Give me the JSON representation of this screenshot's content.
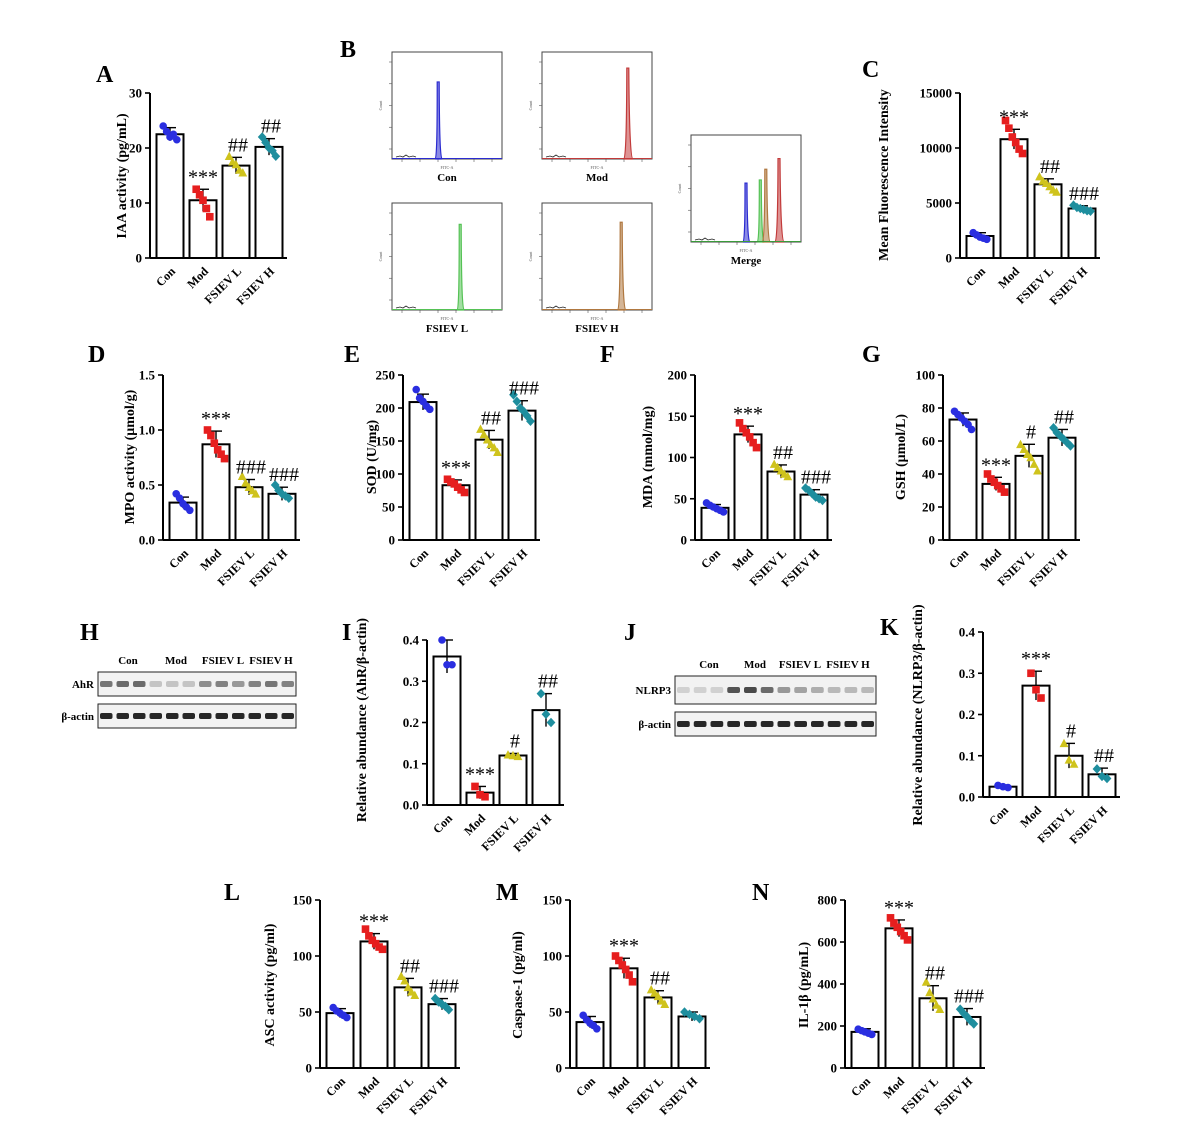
{
  "panel_labels": {
    "A": "A",
    "B": "B",
    "C": "C",
    "D": "D",
    "E": "E",
    "F": "F",
    "G": "G",
    "H": "H",
    "I": "I",
    "J": "J",
    "K": "K",
    "L": "L",
    "M": "M",
    "N": "N"
  },
  "colors": {
    "Con": "#2a2ee0",
    "Mod": "#e61e1e",
    "FSIEV L": "#cfc31c",
    "FSIEV H": "#1e8e9e",
    "FSIEV L (C)": "#1e9a3a",
    "hist_con": "#2b2bd0",
    "hist_mod": "#c23a3a",
    "hist_l": "#55c255",
    "hist_h": "#b07840"
  },
  "flow": {
    "axis_label": "FITC-A",
    "count_label": "Count",
    "titles": {
      "con": "Con",
      "mod": "Mod",
      "l": "FSIEV L",
      "h": "FSIEV H",
      "merge": "Merge"
    }
  },
  "western_H": {
    "groups": [
      "Con",
      "Mod",
      "FSIEV L",
      "FSIEV H"
    ],
    "rows": [
      "AhR",
      "β-actin"
    ]
  },
  "western_J": {
    "groups": [
      "Con",
      "Mod",
      "FSIEV L",
      "FSIEV H"
    ],
    "rows": [
      "NLRP3",
      "β-actin"
    ]
  },
  "chart_data": [
    {
      "id": "A",
      "type": "bar",
      "ylabel": "IAA activity (pg/mL)",
      "categories": [
        "Con",
        "Mod",
        "FSIEV L",
        "FSIEV H"
      ],
      "values": [
        22.5,
        10.5,
        16.8,
        20.2
      ],
      "errors": [
        1.2,
        2.0,
        1.5,
        1.5
      ],
      "ylim": [
        0,
        30
      ],
      "yticks": [
        0,
        10,
        20,
        30
      ],
      "significance": [
        "",
        "***",
        "##",
        "##"
      ],
      "points": [
        [
          24,
          23,
          22,
          22.5,
          21.5
        ],
        [
          12.5,
          11.5,
          10.5,
          9,
          7.5
        ],
        [
          18.5,
          17.5,
          17,
          16,
          15.5
        ],
        [
          22,
          21,
          20,
          19.5,
          18.5
        ]
      ]
    },
    {
      "id": "C",
      "type": "bar",
      "ylabel": "Mean Fluorescence Intensity",
      "categories": [
        "Con",
        "Mod",
        "FSIEV L",
        "FSIEV H"
      ],
      "values": [
        2000,
        10800,
        6700,
        4500
      ],
      "errors": [
        300,
        900,
        500,
        250
      ],
      "ylim": [
        0,
        15000
      ],
      "yticks": [
        0,
        5000,
        10000,
        15000
      ],
      "significance": [
        "",
        "***",
        "##",
        "###"
      ],
      "points": [
        [
          2300,
          2100,
          1900,
          1800,
          1700
        ],
        [
          12500,
          11800,
          11000,
          10500,
          9900,
          9500
        ],
        [
          7400,
          7000,
          6800,
          6500,
          6200,
          6000
        ],
        [
          4800,
          4600,
          4500,
          4400,
          4300,
          4250
        ]
      ]
    },
    {
      "id": "D",
      "type": "bar",
      "ylabel": "MPO activity (μmol/g)",
      "categories": [
        "Con",
        "Mod",
        "FSIEV L",
        "FSIEV H"
      ],
      "values": [
        0.34,
        0.87,
        0.48,
        0.42
      ],
      "errors": [
        0.05,
        0.12,
        0.07,
        0.06
      ],
      "ylim": [
        0,
        1.5
      ],
      "yticks": [
        "0.0",
        "0.5",
        "1.0",
        "1.5"
      ],
      "significance": [
        "",
        "***",
        "###",
        "###"
      ],
      "points": [
        [
          0.42,
          0.38,
          0.33,
          0.3,
          0.27
        ],
        [
          1.0,
          0.95,
          0.88,
          0.82,
          0.78,
          0.74
        ],
        [
          0.58,
          0.52,
          0.48,
          0.45,
          0.42
        ],
        [
          0.5,
          0.45,
          0.42,
          0.4,
          0.38
        ]
      ]
    },
    {
      "id": "E",
      "type": "bar",
      "ylabel": "SOD (U/mg)",
      "categories": [
        "Con",
        "Mod",
        "FSIEV L",
        "FSIEV H"
      ],
      "values": [
        209,
        83,
        152,
        196
      ],
      "errors": [
        12,
        8,
        14,
        15
      ],
      "ylim": [
        0,
        250
      ],
      "yticks": [
        0,
        50,
        100,
        150,
        200,
        250
      ],
      "significance": [
        "",
        "***",
        "##",
        "###"
      ],
      "points": [
        [
          228,
          215,
          210,
          203,
          198
        ],
        [
          92,
          88,
          85,
          80,
          76,
          72
        ],
        [
          168,
          160,
          152,
          145,
          140,
          133
        ],
        [
          220,
          210,
          200,
          195,
          188,
          180
        ]
      ]
    },
    {
      "id": "F",
      "type": "bar",
      "ylabel": "MDA (mmol/mg)",
      "categories": [
        "Con",
        "Mod",
        "FSIEV L",
        "FSIEV H"
      ],
      "values": [
        39,
        128,
        83,
        55
      ],
      "errors": [
        4,
        10,
        8,
        6
      ],
      "ylim": [
        0,
        200
      ],
      "yticks": [
        0,
        50,
        100,
        150,
        200
      ],
      "significance": [
        "",
        "***",
        "##",
        "###"
      ],
      "points": [
        [
          45,
          42,
          40,
          38,
          36,
          34
        ],
        [
          142,
          135,
          130,
          125,
          118,
          112
        ],
        [
          92,
          88,
          84,
          80,
          77
        ],
        [
          63,
          60,
          56,
          52,
          50,
          48
        ]
      ]
    },
    {
      "id": "G",
      "type": "bar",
      "ylabel": "GSH (μmol/L)",
      "categories": [
        "Con",
        "Mod",
        "FSIEV L",
        "FSIEV H"
      ],
      "values": [
        73,
        34,
        51,
        62
      ],
      "errors": [
        4,
        4,
        7,
        5
      ],
      "ylim": [
        0,
        100
      ],
      "yticks": [
        0,
        20,
        40,
        60,
        80,
        100
      ],
      "significance": [
        "",
        "***",
        "#",
        "##"
      ],
      "points": [
        [
          78,
          76,
          74,
          72,
          70,
          67
        ],
        [
          40,
          37,
          35,
          33,
          31,
          29
        ],
        [
          58,
          55,
          52,
          50,
          46,
          42
        ],
        [
          68,
          65,
          63,
          61,
          59,
          57
        ]
      ]
    },
    {
      "id": "I",
      "type": "bar",
      "ylabel": "Relative abundance (AhR/β-actin)",
      "categories": [
        "Con",
        "Mod",
        "FSIEV L",
        "FSIEV H"
      ],
      "values": [
        0.36,
        0.03,
        0.12,
        0.23
      ],
      "errors": [
        0.04,
        0.015,
        0.005,
        0.04
      ],
      "ylim": [
        0,
        0.4
      ],
      "yticks": [
        "0.0",
        "0.1",
        "0.2",
        "0.3",
        "0.4"
      ],
      "significance": [
        "",
        "***",
        "#",
        "##"
      ],
      "points": [
        [
          0.4,
          0.34,
          0.34
        ],
        [
          0.045,
          0.025,
          0.02
        ],
        [
          0.122,
          0.12,
          0.118
        ],
        [
          0.27,
          0.22,
          0.2
        ]
      ]
    },
    {
      "id": "K",
      "type": "bar",
      "ylabel": "Relative abundance (NLRP3/β-actin)",
      "categories": [
        "Con",
        "Mod",
        "FSIEV L",
        "FSIEV H"
      ],
      "values": [
        0.025,
        0.27,
        0.1,
        0.055
      ],
      "errors": [
        0.004,
        0.035,
        0.03,
        0.015
      ],
      "ylim": [
        0,
        0.4
      ],
      "yticks": [
        "0.0",
        "0.1",
        "0.2",
        "0.3",
        "0.4"
      ],
      "significance": [
        "",
        "***",
        "#",
        "##"
      ],
      "points": [
        [
          0.028,
          0.025,
          0.023
        ],
        [
          0.3,
          0.26,
          0.24
        ],
        [
          0.13,
          0.09,
          0.08
        ],
        [
          0.068,
          0.05,
          0.045
        ]
      ]
    },
    {
      "id": "L",
      "type": "bar",
      "ylabel": "ASC activity (pg/ml)",
      "categories": [
        "Con",
        "Mod",
        "FSIEV L",
        "FSIEV H"
      ],
      "values": [
        49,
        113,
        72,
        57
      ],
      "errors": [
        4,
        7,
        8,
        5
      ],
      "ylim": [
        0,
        150
      ],
      "yticks": [
        0,
        50,
        100,
        150
      ],
      "significance": [
        "",
        "***",
        "##",
        "###"
      ],
      "points": [
        [
          54,
          51,
          49,
          47,
          45
        ],
        [
          124,
          118,
          114,
          111,
          108,
          106
        ],
        [
          82,
          78,
          72,
          68,
          65
        ],
        [
          62,
          59,
          57,
          55,
          52
        ]
      ]
    },
    {
      "id": "M",
      "type": "bar",
      "ylabel": "Caspase-1 (pg/ml)",
      "categories": [
        "Con",
        "Mod",
        "FSIEV L",
        "FSIEV H"
      ],
      "values": [
        41,
        89,
        63,
        46
      ],
      "errors": [
        5,
        9,
        6,
        4
      ],
      "ylim": [
        0,
        150
      ],
      "yticks": [
        0,
        50,
        100,
        150
      ],
      "significance": [
        "",
        "***",
        "##",
        ""
      ],
      "points": [
        [
          47,
          43,
          40,
          38,
          35
        ],
        [
          100,
          96,
          92,
          88,
          83,
          77
        ],
        [
          70,
          67,
          64,
          60,
          57
        ],
        [
          50,
          48,
          46,
          44
        ]
      ]
    },
    {
      "id": "N",
      "type": "bar",
      "ylabel": "IL-1β (pg/mL)",
      "categories": [
        "Con",
        "Mod",
        "FSIEV L",
        "FSIEV H"
      ],
      "values": [
        172,
        665,
        332,
        243
      ],
      "errors": [
        15,
        40,
        60,
        40
      ],
      "ylim": [
        0,
        800
      ],
      "yticks": [
        0,
        200,
        400,
        600,
        800
      ],
      "significance": [
        "",
        "***",
        "##",
        "###"
      ],
      "points": [
        [
          185,
          178,
          172,
          166,
          160
        ],
        [
          715,
          690,
          670,
          650,
          630,
          610
        ],
        [
          410,
          360,
          330,
          300,
          280
        ],
        [
          280,
          260,
          245,
          225,
          210
        ]
      ]
    }
  ]
}
